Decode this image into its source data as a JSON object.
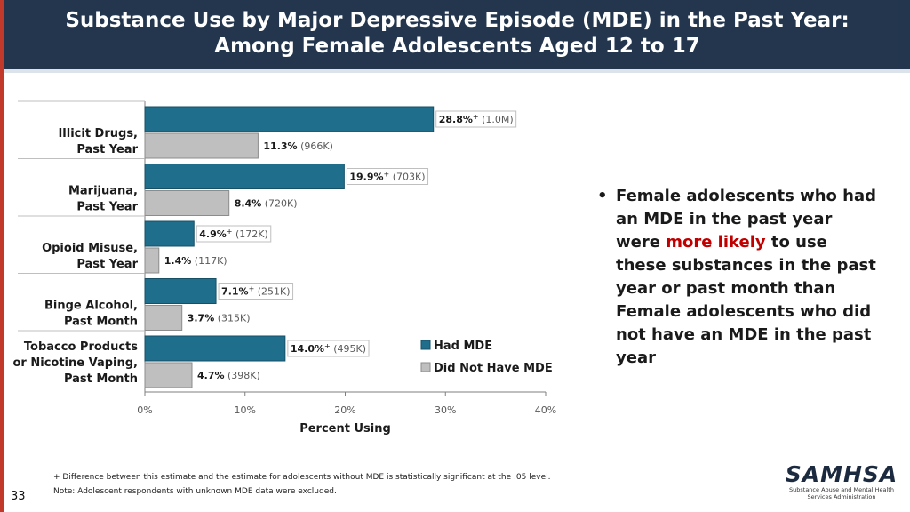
{
  "header": {
    "title_line1": "Substance Use by Major Depressive Episode (MDE) in the Past Year:",
    "title_line2": "Among Female Adolescents Aged 12 to 17"
  },
  "colors": {
    "had_mde": "#1f6e8c",
    "no_mde": "#bfbfbf",
    "header_bg": "#23364d",
    "accent_red": "#c00000"
  },
  "chart_data": {
    "type": "bar",
    "orientation": "horizontal",
    "categories": [
      [
        "Illicit Drugs,",
        "Past Year"
      ],
      [
        "Marijuana,",
        "Past Year"
      ],
      [
        "Opioid Misuse,",
        "Past Year"
      ],
      [
        "Binge Alcohol,",
        "Past Month"
      ],
      [
        "Tobacco Products",
        "or Nicotine Vaping,",
        "Past Month"
      ]
    ],
    "series": [
      {
        "name": "Had MDE",
        "values": [
          28.8,
          19.9,
          4.9,
          7.1,
          14.0
        ],
        "labels": [
          "28.8%",
          "19.9%",
          "4.9%",
          "7.1%",
          "14.0%"
        ],
        "sig": [
          "+",
          "+",
          "+",
          "+",
          "+"
        ],
        "counts": [
          "(1.0M)",
          "(703K)",
          "(172K)",
          "(251K)",
          "(495K)"
        ]
      },
      {
        "name": "Did Not Have MDE",
        "values": [
          11.3,
          8.4,
          1.4,
          3.7,
          4.7
        ],
        "labels": [
          "11.3%",
          "8.4%",
          "1.4%",
          "3.7%",
          "4.7%"
        ],
        "sig": [
          "",
          "",
          "",
          "",
          ""
        ],
        "counts": [
          "(966K)",
          "(720K)",
          "(117K)",
          "(315K)",
          "(398K)"
        ]
      }
    ],
    "xticks": [
      "0%",
      "10%",
      "20%",
      "30%",
      "40%"
    ],
    "xlim": [
      0,
      40
    ],
    "xlabel": "Percent Using",
    "legend": [
      "Had MDE",
      "Did Not Have MDE"
    ]
  },
  "bullet": {
    "marker": "•",
    "text_before": "Female adolescents who had an MDE in the past year were ",
    "highlight": "more likely",
    "text_after": " to use these substances in the past year or past month than Female adolescents who did not have an MDE in the past year"
  },
  "footnotes": {
    "line1": "+ Difference between this estimate and the estimate for adolescents without MDE is statistically significant at the .05 level.",
    "line2": "Note: Adolescent respondents with unknown MDE data were excluded."
  },
  "page_number": "33",
  "logo": {
    "wordmark": "SAMHSA",
    "line1": "Substance Abuse and Mental Health",
    "line2": "Services Administration"
  }
}
